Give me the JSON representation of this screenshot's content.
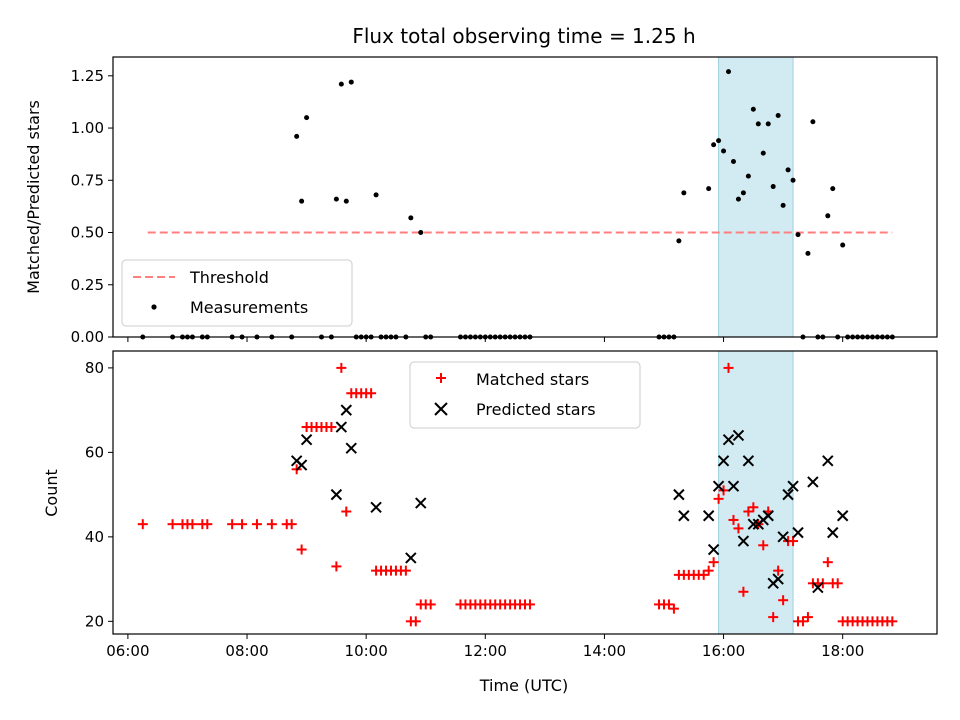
{
  "chart_data": [
    {
      "type": "scatter",
      "title": "Flux total observing time = 1.25 h",
      "xlabel": "",
      "ylabel": "Matched/Predicted stars",
      "ylim": [
        0,
        1.34
      ],
      "xlim": [
        "05:45",
        "19:35"
      ],
      "yticks": [
        "0.00",
        "0.25",
        "0.50",
        "0.75",
        "1.00",
        "1.25"
      ],
      "grid": false,
      "legend_position": "lower-left",
      "shaded_interval": {
        "start": "15:55",
        "end": "17:10",
        "color": "#add8e6"
      },
      "threshold": {
        "name": "Threshold",
        "value": 0.5,
        "x_range": [
          "06:20",
          "18:50"
        ],
        "color": "#ff7f7f",
        "style": "dashed"
      },
      "series": [
        {
          "name": "Measurements",
          "marker": "dot",
          "color": "#000000",
          "points": [
            [
              "06:15",
              0
            ],
            [
              "06:45",
              0
            ],
            [
              "06:55",
              0
            ],
            [
              "07:00",
              0
            ],
            [
              "07:05",
              0
            ],
            [
              "07:15",
              0
            ],
            [
              "07:20",
              0
            ],
            [
              "07:45",
              0
            ],
            [
              "07:55",
              0
            ],
            [
              "08:10",
              0
            ],
            [
              "08:25",
              0
            ],
            [
              "08:45",
              0
            ],
            [
              "08:50",
              0.96
            ],
            [
              "08:55",
              0.65
            ],
            [
              "09:00",
              1.05
            ],
            [
              "09:15",
              0
            ],
            [
              "09:25",
              0
            ],
            [
              "09:30",
              0.66
            ],
            [
              "09:35",
              1.21
            ],
            [
              "09:45",
              1.22
            ],
            [
              "09:40",
              0.65
            ],
            [
              "09:50",
              0
            ],
            [
              "09:55",
              0
            ],
            [
              "10:00",
              0
            ],
            [
              "10:05",
              0
            ],
            [
              "10:10",
              0.68
            ],
            [
              "10:15",
              0
            ],
            [
              "10:20",
              0
            ],
            [
              "10:25",
              0
            ],
            [
              "10:30",
              0
            ],
            [
              "10:40",
              0
            ],
            [
              "10:45",
              0.57
            ],
            [
              "10:55",
              0.5
            ],
            [
              "11:00",
              0
            ],
            [
              "11:05",
              0
            ],
            [
              "11:35",
              0
            ],
            [
              "11:40",
              0
            ],
            [
              "11:45",
              0
            ],
            [
              "11:50",
              0
            ],
            [
              "11:55",
              0
            ],
            [
              "12:00",
              0
            ],
            [
              "12:05",
              0
            ],
            [
              "12:10",
              0
            ],
            [
              "12:15",
              0
            ],
            [
              "12:20",
              0
            ],
            [
              "12:25",
              0
            ],
            [
              "12:30",
              0
            ],
            [
              "12:35",
              0
            ],
            [
              "12:40",
              0
            ],
            [
              "12:45",
              0
            ],
            [
              "14:55",
              0
            ],
            [
              "15:00",
              0
            ],
            [
              "15:05",
              0
            ],
            [
              "15:10",
              0
            ],
            [
              "15:15",
              0.46
            ],
            [
              "15:20",
              0.69
            ],
            [
              "15:45",
              0.71
            ],
            [
              "15:50",
              0.92
            ],
            [
              "15:55",
              0.94
            ],
            [
              "16:00",
              0.89
            ],
            [
              "16:05",
              1.27
            ],
            [
              "16:10",
              0.84
            ],
            [
              "16:15",
              0.66
            ],
            [
              "16:20",
              0.69
            ],
            [
              "16:25",
              0.77
            ],
            [
              "16:30",
              1.09
            ],
            [
              "16:35",
              1.02
            ],
            [
              "16:40",
              0.88
            ],
            [
              "16:45",
              1.02
            ],
            [
              "16:50",
              0.72
            ],
            [
              "16:55",
              1.06
            ],
            [
              "17:00",
              0.63
            ],
            [
              "17:05",
              0.8
            ],
            [
              "17:10",
              0.75
            ],
            [
              "17:15",
              0.49
            ],
            [
              "17:20",
              0
            ],
            [
              "17:25",
              0.4
            ],
            [
              "17:30",
              1.03
            ],
            [
              "17:35",
              0
            ],
            [
              "17:40",
              0
            ],
            [
              "17:45",
              0.58
            ],
            [
              "17:50",
              0.71
            ],
            [
              "17:55",
              0
            ],
            [
              "18:00",
              0.44
            ],
            [
              "18:05",
              0
            ],
            [
              "18:10",
              0
            ],
            [
              "18:15",
              0
            ],
            [
              "18:20",
              0
            ],
            [
              "18:25",
              0
            ],
            [
              "18:30",
              0
            ],
            [
              "18:35",
              0
            ],
            [
              "18:40",
              0
            ],
            [
              "18:45",
              0
            ],
            [
              "18:50",
              0
            ]
          ]
        }
      ]
    },
    {
      "type": "scatter",
      "title": "",
      "xlabel": "Time (UTC)",
      "ylabel": "Count",
      "ylim": [
        17,
        84
      ],
      "xlim": [
        "05:45",
        "19:35"
      ],
      "xticks": [
        "06:00",
        "08:00",
        "10:00",
        "12:00",
        "14:00",
        "16:00",
        "18:00"
      ],
      "yticks": [
        "20",
        "40",
        "60",
        "80"
      ],
      "grid": false,
      "legend_position": "top-center",
      "shaded_interval": {
        "start": "15:55",
        "end": "17:10",
        "color": "#add8e6"
      },
      "series": [
        {
          "name": "Matched stars",
          "marker": "plus",
          "color": "#ff0000",
          "points": [
            [
              "06:15",
              43
            ],
            [
              "06:45",
              43
            ],
            [
              "06:55",
              43
            ],
            [
              "07:00",
              43
            ],
            [
              "07:05",
              43
            ],
            [
              "07:15",
              43
            ],
            [
              "07:20",
              43
            ],
            [
              "07:45",
              43
            ],
            [
              "07:55",
              43
            ],
            [
              "08:10",
              43
            ],
            [
              "08:25",
              43
            ],
            [
              "08:40",
              43
            ],
            [
              "08:45",
              43
            ],
            [
              "08:50",
              56
            ],
            [
              "08:55",
              37
            ],
            [
              "09:00",
              66
            ],
            [
              "09:05",
              66
            ],
            [
              "09:10",
              66
            ],
            [
              "09:15",
              66
            ],
            [
              "09:20",
              66
            ],
            [
              "09:25",
              66
            ],
            [
              "09:30",
              33
            ],
            [
              "09:35",
              80
            ],
            [
              "09:40",
              46
            ],
            [
              "09:45",
              74
            ],
            [
              "09:50",
              74
            ],
            [
              "09:55",
              74
            ],
            [
              "10:00",
              74
            ],
            [
              "10:05",
              74
            ],
            [
              "10:10",
              32
            ],
            [
              "10:15",
              32
            ],
            [
              "10:20",
              32
            ],
            [
              "10:25",
              32
            ],
            [
              "10:30",
              32
            ],
            [
              "10:35",
              32
            ],
            [
              "10:40",
              32
            ],
            [
              "10:45",
              20
            ],
            [
              "10:50",
              20
            ],
            [
              "10:55",
              24
            ],
            [
              "11:00",
              24
            ],
            [
              "11:05",
              24
            ],
            [
              "11:35",
              24
            ],
            [
              "11:40",
              24
            ],
            [
              "11:45",
              24
            ],
            [
              "11:50",
              24
            ],
            [
              "11:55",
              24
            ],
            [
              "12:00",
              24
            ],
            [
              "12:05",
              24
            ],
            [
              "12:10",
              24
            ],
            [
              "12:15",
              24
            ],
            [
              "12:20",
              24
            ],
            [
              "12:25",
              24
            ],
            [
              "12:30",
              24
            ],
            [
              "12:35",
              24
            ],
            [
              "12:40",
              24
            ],
            [
              "12:45",
              24
            ],
            [
              "14:55",
              24
            ],
            [
              "15:00",
              24
            ],
            [
              "15:05",
              24
            ],
            [
              "15:10",
              23
            ],
            [
              "15:15",
              31
            ],
            [
              "15:20",
              31
            ],
            [
              "15:25",
              31
            ],
            [
              "15:30",
              31
            ],
            [
              "15:35",
              31
            ],
            [
              "15:40",
              31
            ],
            [
              "15:45",
              32
            ],
            [
              "15:50",
              34
            ],
            [
              "15:55",
              49
            ],
            [
              "16:00",
              51
            ],
            [
              "16:05",
              80
            ],
            [
              "16:10",
              44
            ],
            [
              "16:15",
              42
            ],
            [
              "16:20",
              27
            ],
            [
              "16:25",
              46
            ],
            [
              "16:30",
              47
            ],
            [
              "16:35",
              43
            ],
            [
              "16:40",
              38
            ],
            [
              "16:45",
              46
            ],
            [
              "16:50",
              21
            ],
            [
              "16:55",
              32
            ],
            [
              "17:00",
              25
            ],
            [
              "17:05",
              39
            ],
            [
              "17:10",
              39
            ],
            [
              "17:15",
              20
            ],
            [
              "17:20",
              20
            ],
            [
              "17:25",
              21
            ],
            [
              "17:30",
              29
            ],
            [
              "17:35",
              29
            ],
            [
              "17:40",
              29
            ],
            [
              "17:45",
              34
            ],
            [
              "17:50",
              29
            ],
            [
              "17:55",
              29
            ],
            [
              "18:00",
              20
            ],
            [
              "18:05",
              20
            ],
            [
              "18:10",
              20
            ],
            [
              "18:15",
              20
            ],
            [
              "18:20",
              20
            ],
            [
              "18:25",
              20
            ],
            [
              "18:30",
              20
            ],
            [
              "18:35",
              20
            ],
            [
              "18:40",
              20
            ],
            [
              "18:45",
              20
            ],
            [
              "18:50",
              20
            ]
          ]
        },
        {
          "name": "Predicted stars",
          "marker": "x",
          "color": "#000000",
          "points": [
            [
              "08:50",
              58
            ],
            [
              "08:55",
              57
            ],
            [
              "09:00",
              63
            ],
            [
              "09:30",
              50
            ],
            [
              "09:35",
              66
            ],
            [
              "09:40",
              70
            ],
            [
              "09:45",
              61
            ],
            [
              "10:10",
              47
            ],
            [
              "10:45",
              35
            ],
            [
              "10:55",
              48
            ],
            [
              "15:15",
              50
            ],
            [
              "15:20",
              45
            ],
            [
              "15:45",
              45
            ],
            [
              "15:50",
              37
            ],
            [
              "15:55",
              52
            ],
            [
              "16:00",
              58
            ],
            [
              "16:05",
              63
            ],
            [
              "16:10",
              52
            ],
            [
              "16:15",
              64
            ],
            [
              "16:20",
              39
            ],
            [
              "16:25",
              58
            ],
            [
              "16:30",
              43
            ],
            [
              "16:35",
              43
            ],
            [
              "16:40",
              44
            ],
            [
              "16:45",
              45
            ],
            [
              "16:50",
              29
            ],
            [
              "16:55",
              30
            ],
            [
              "17:00",
              40
            ],
            [
              "17:05",
              50
            ],
            [
              "17:10",
              52
            ],
            [
              "17:15",
              41
            ],
            [
              "17:30",
              53
            ],
            [
              "17:35",
              28
            ],
            [
              "17:45",
              58
            ],
            [
              "17:50",
              41
            ],
            [
              "18:00",
              45
            ]
          ]
        }
      ]
    }
  ]
}
